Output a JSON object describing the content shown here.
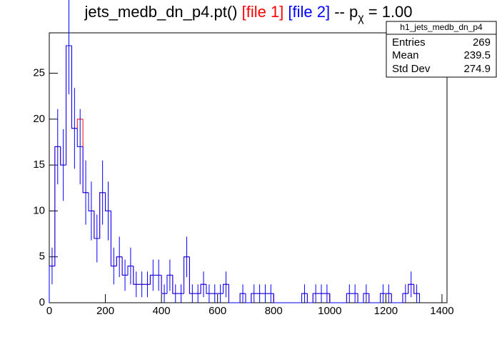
{
  "chart_data": {
    "type": "histogram",
    "title_parts": [
      {
        "text": "jets_medb_dn_p4.pt() ",
        "color": "#000000"
      },
      {
        "text": "[file 1]",
        "color": "#ff0000"
      },
      {
        "text": " [file 2]",
        "color": "#0000ff"
      },
      {
        "text": " -- p",
        "color": "#000000"
      },
      {
        "text": "χ",
        "color": "#000000",
        "subscript": true
      },
      {
        "text": " = 1.00",
        "color": "#000000"
      }
    ],
    "bins": [
      0,
      20,
      40,
      60,
      80,
      100,
      120,
      140,
      160,
      180,
      200,
      220,
      240,
      260,
      280,
      300,
      320,
      340,
      360,
      380,
      400,
      420,
      440,
      460,
      480,
      500,
      520,
      540,
      560,
      580,
      600,
      620,
      640,
      660,
      680,
      700,
      720,
      740,
      760,
      780,
      800,
      820,
      840,
      860,
      880,
      900,
      920,
      940,
      960,
      980,
      1000,
      1020,
      1040,
      1060,
      1080,
      1100,
      1120,
      1140,
      1160,
      1180,
      1200,
      1220,
      1240,
      1260,
      1280,
      1300,
      1320
    ],
    "series": [
      {
        "name": "file 1",
        "color": "#ff0000",
        "values": [
          4,
          17,
          15,
          28,
          19,
          20,
          12,
          10,
          7,
          12,
          10,
          4,
          5,
          3,
          4,
          2,
          2,
          2,
          3,
          3,
          1,
          3,
          1,
          1,
          5,
          1,
          1,
          2,
          1,
          1,
          1,
          2,
          0,
          0,
          1,
          0,
          1,
          1,
          1,
          1,
          0,
          0,
          0,
          0,
          0,
          1,
          0,
          1,
          1,
          1,
          0,
          0,
          0,
          1,
          1,
          0,
          1,
          0,
          0,
          1,
          1,
          0,
          0,
          1,
          2,
          1
        ]
      },
      {
        "name": "file 2",
        "color": "#0000ff",
        "values": [
          4,
          17,
          15,
          28,
          19,
          17,
          12,
          10,
          7,
          12,
          10,
          4,
          5,
          3,
          4,
          2,
          2,
          2,
          3,
          3,
          1,
          3,
          1,
          1,
          5,
          1,
          1,
          2,
          1,
          1,
          1,
          2,
          0,
          0,
          1,
          0,
          1,
          1,
          1,
          1,
          0,
          0,
          0,
          0,
          0,
          1,
          0,
          1,
          1,
          1,
          0,
          0,
          0,
          1,
          1,
          0,
          1,
          0,
          0,
          1,
          1,
          0,
          0,
          1,
          2,
          1
        ],
        "errors": [
          2,
          4.1,
          3.9,
          5.3,
          4.4,
          4.1,
          3.5,
          3.2,
          2.6,
          3.5,
          3.2,
          2,
          2.2,
          1.7,
          2,
          1.4,
          1.4,
          1.4,
          1.7,
          1.7,
          1,
          1.7,
          1,
          1,
          2.2,
          1,
          1,
          1.4,
          1,
          1,
          1,
          1.4,
          0,
          0,
          1,
          0,
          1,
          1,
          1,
          1,
          0,
          0,
          0,
          0,
          0,
          1,
          0,
          1,
          1,
          1,
          0,
          0,
          0,
          1,
          1,
          0,
          1,
          0,
          0,
          1,
          1,
          0,
          0,
          1,
          1.4,
          1
        ]
      }
    ],
    "xlim": [
      0,
      1418
    ],
    "ylim": [
      0,
      29.4
    ],
    "xticks": [
      0,
      200,
      400,
      600,
      800,
      1000,
      1200,
      1400
    ],
    "yticks": [
      0,
      5,
      10,
      15,
      20,
      25
    ],
    "stats": {
      "title": "h1_jets_medb_dn_p4",
      "rows": [
        {
          "label": "Entries",
          "value": "269"
        },
        {
          "label": "Mean",
          "value": "239.5"
        },
        {
          "label": "Std Dev",
          "value": "274.9"
        }
      ]
    }
  }
}
